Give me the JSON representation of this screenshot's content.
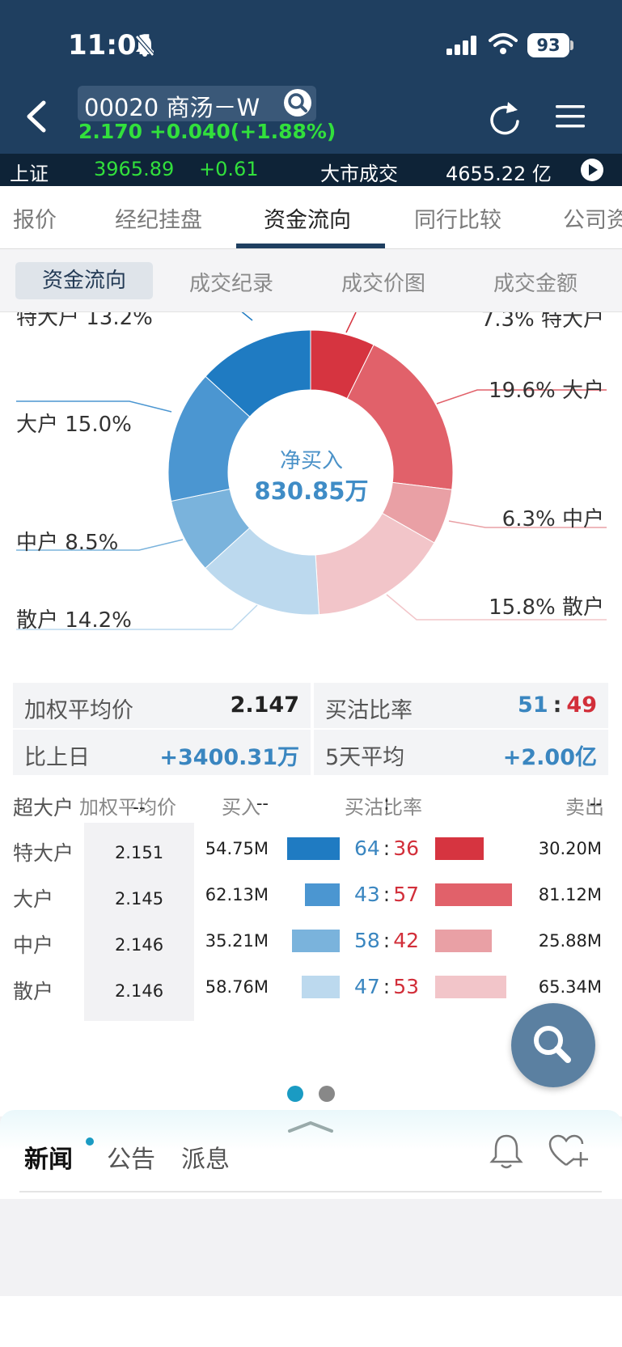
{
  "status": {
    "time": "11:01",
    "battery": "93"
  },
  "stock": {
    "name": "00020 商汤－W",
    "price_line": "2.170 +0.040(+1.88%)"
  },
  "market": {
    "index_name": "上证",
    "index_value": "3965.89",
    "index_change": "+0.61",
    "turnover_label": "大市成交",
    "turnover_value": "4655.22 亿"
  },
  "tabs": [
    {
      "label": "报价"
    },
    {
      "label": "经纪挂盘"
    },
    {
      "label": "资金流向"
    },
    {
      "label": "同行比较"
    },
    {
      "label": "公司资"
    }
  ],
  "subtabs": [
    {
      "label": "资金流向"
    },
    {
      "label": "成交纪录"
    },
    {
      "label": "成交价图"
    },
    {
      "label": "成交金额"
    }
  ],
  "chart_data": {
    "type": "pie",
    "center_title": "净买入",
    "center_value": "830.85万",
    "slices": [
      {
        "name": "特大户",
        "side": "sell",
        "value": 7.3,
        "label": "7.3% 特大户",
        "color": "#d63440"
      },
      {
        "name": "大户",
        "side": "sell",
        "value": 19.6,
        "label": "19.6% 大户",
        "color": "#e1616a"
      },
      {
        "name": "中户",
        "side": "sell",
        "value": 6.3,
        "label": "6.3% 中户",
        "color": "#e9a0a5"
      },
      {
        "name": "散户",
        "side": "sell",
        "value": 15.8,
        "label": "15.8% 散户",
        "color": "#f2c5c9"
      },
      {
        "name": "散户",
        "side": "buy",
        "value": 14.2,
        "label": "散户 14.2%",
        "color": "#bcd9ee"
      },
      {
        "name": "中户",
        "side": "buy",
        "value": 8.5,
        "label": "中户 8.5%",
        "color": "#7ab3dc"
      },
      {
        "name": "大户",
        "side": "buy",
        "value": 15.0,
        "label": "大户 15.0%",
        "color": "#4b96d1"
      },
      {
        "name": "特大户",
        "side": "buy",
        "value": 13.2,
        "label": "特大户 13.2%",
        "color": "#1f7bc2"
      }
    ]
  },
  "summary": {
    "weighted_avg_label": "加权平均价",
    "weighted_avg_value": "2.147",
    "ratio_label": "买沽比率",
    "ratio_buy": "51",
    "ratio_sep": ":",
    "ratio_sell": "49",
    "prev_day_label": "比上日",
    "prev_day_value": "+3400.31万",
    "five_day_label": "5天平均",
    "five_day_value": "+2.00亿"
  },
  "table": {
    "headers": {
      "avg": "加权平均价",
      "buy": "买入",
      "ratio": "买沽比率",
      "sell": "卖出"
    },
    "rows": [
      {
        "label": "超大户",
        "avg": "--",
        "buy": "--",
        "ratio_buy": "",
        "sep": ":",
        "ratio_sell": "",
        "sell": "--",
        "buy_share": 0,
        "sell_share": 0
      },
      {
        "label": "特大户",
        "avg": "2.151",
        "buy": "54.75M",
        "ratio_buy": "64",
        "sep": ":",
        "ratio_sell": "36",
        "sell": "30.20M",
        "buy_share": 64,
        "sell_share": 36
      },
      {
        "label": "大户",
        "avg": "2.145",
        "buy": "62.13M",
        "ratio_buy": "43",
        "sep": ":",
        "ratio_sell": "57",
        "sell": "81.12M",
        "buy_share": 43,
        "sell_share": 57
      },
      {
        "label": "中户",
        "avg": "2.146",
        "buy": "35.21M",
        "ratio_buy": "58",
        "sep": ":",
        "ratio_sell": "42",
        "sell": "25.88M",
        "buy_share": 58,
        "sell_share": 42
      },
      {
        "label": "散户",
        "avg": "2.146",
        "buy": "58.76M",
        "ratio_buy": "47",
        "sep": ":",
        "ratio_sell": "53",
        "sell": "65.34M",
        "buy_share": 47,
        "sell_share": 53
      }
    ]
  },
  "pager": {
    "total": 2,
    "current": 1
  },
  "news": {
    "tabs": [
      "新闻",
      "公告",
      "派息"
    ]
  },
  "colors": {
    "header": "#1f3f60",
    "price_up": "#32e03c",
    "buy_blue": "#3a86c0",
    "sell_red": "#d22f3a",
    "accent": "#1a9bc3"
  }
}
